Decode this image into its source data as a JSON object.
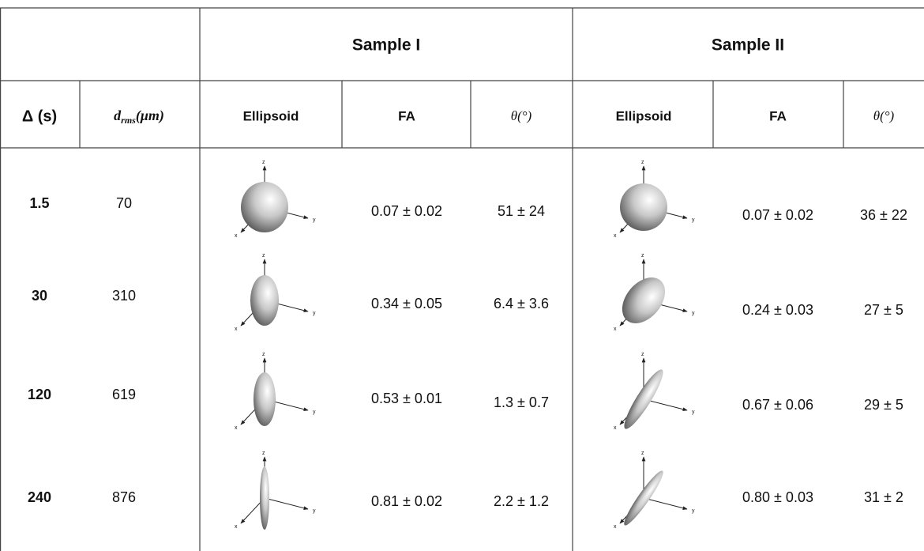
{
  "table": {
    "groups": [
      "Sample I",
      "Sample II"
    ],
    "header": {
      "delta": "Δ (s)",
      "drms": {
        "base": "d",
        "sub": "rms",
        "unit": "(μm)"
      },
      "ellipsoid": "Ellipsoid",
      "fa": "FA",
      "theta": "θ(°)"
    },
    "axis_labels": {
      "x": "x",
      "y": "y",
      "z": "z"
    },
    "rows": [
      [
        "1.5",
        "70",
        "0.07 ± 0.02",
        "51 ± 24",
        "0.07 ± 0.02",
        "36 ± 22"
      ],
      [
        "30",
        "310",
        "0.34 ± 0.05",
        "6.4 ± 3.6",
        "0.24 ± 0.03",
        "27 ± 5"
      ],
      [
        "120",
        "619",
        "0.53 ± 0.01",
        "1.3 ± 0.7",
        "0.67 ± 0.06",
        "29 ± 5"
      ],
      [
        "240",
        "876",
        "0.81 ± 0.02",
        "2.2 ± 1.2",
        "0.80 ± 0.03",
        "31 ± 2"
      ]
    ]
  }
}
